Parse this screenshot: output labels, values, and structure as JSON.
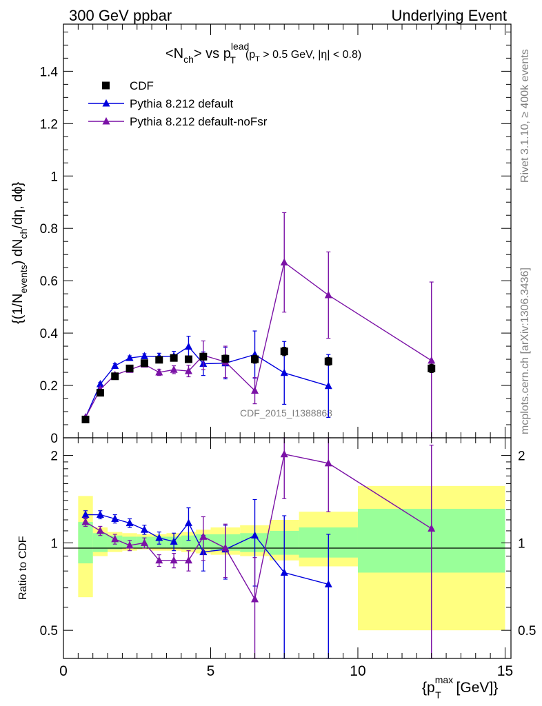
{
  "header": {
    "left": "300 GeV ppbar",
    "right": "Underlying Event"
  },
  "side_text": {
    "top": "Rivet 3.1.10, ≥ 400k events",
    "bottom": "mcplots.cern.ch [arXiv:1306.3436]"
  },
  "watermark": "CDF_2015_I1388868",
  "title": {
    "main": "<N",
    "sub_ch": "ch",
    "vs": "> vs p",
    "sup_lead": "lead",
    "sub_T": "T",
    "cuts_open": "(p",
    "cuts_sub_T": "T",
    "cuts_rest": " > 0.5 GeV, |η| < 0.8)"
  },
  "ylabel_top": "{(1/N_events) dN_ch/dη, dϕ}",
  "ylabel_parts": {
    "a": "{(1/N",
    "a_sub": "events",
    "b": ") dN",
    "b_sub": "ch",
    "c": "/dη, dϕ}"
  },
  "ylabel_bottom": "Ratio to CDF",
  "xlabel_parts": {
    "a": "{p",
    "sup": "max",
    "sub": "T",
    "b": " [GeV]}"
  },
  "colors": {
    "data": "#000000",
    "default": "#0000dd",
    "noFsr": "#7b12a6",
    "band_outer": "#ffff80",
    "band_inner": "#99ff99"
  },
  "chart_data": [
    {
      "type": "scatter",
      "title": "<N_ch> vs p_T^lead (p_T > 0.5 GeV, |η| < 0.8)",
      "xlim": [
        0,
        15.2
      ],
      "ylim": [
        0,
        1.58
      ],
      "yticks": [
        0,
        0.2,
        0.4,
        0.6,
        0.8,
        1,
        1.2,
        1.4
      ],
      "ytick_labels": [
        "0",
        "0.2",
        "0.4",
        "0.6",
        "0.8",
        "1",
        "1.2",
        "1.4"
      ],
      "legend_position": "top-left",
      "legend": [
        "CDF",
        "Pythia 8.212 default",
        "Pythia 8.212 default-noFsr"
      ],
      "series": [
        {
          "name": "CDF",
          "x": [
            0.75,
            1.25,
            1.75,
            2.25,
            2.75,
            3.25,
            3.75,
            4.25,
            4.75,
            5.5,
            6.5,
            7.5,
            9.0,
            12.5
          ],
          "y": [
            0.07,
            0.172,
            0.235,
            0.265,
            0.285,
            0.298,
            0.305,
            0.3,
            0.31,
            0.302,
            0.3,
            0.33,
            0.292,
            0.265
          ],
          "err": [
            0.005,
            0.006,
            0.008,
            0.009,
            0.01,
            0.011,
            0.012,
            0.012,
            0.013,
            0.014,
            0.015,
            0.016,
            0.015,
            0.016
          ]
        },
        {
          "name": "Pythia 8.212 default",
          "x": [
            0.75,
            1.25,
            1.75,
            2.25,
            2.75,
            3.25,
            3.75,
            4.25,
            4.75,
            5.5,
            6.5,
            7.5,
            9.0
          ],
          "y": [
            0.078,
            0.205,
            0.275,
            0.305,
            0.312,
            0.31,
            0.312,
            0.348,
            0.283,
            0.285,
            0.318,
            0.248,
            0.198
          ],
          "err": [
            0.004,
            0.006,
            0.008,
            0.008,
            0.009,
            0.013,
            0.018,
            0.04,
            0.045,
            0.06,
            0.09,
            0.12,
            0.12
          ]
        },
        {
          "name": "Pythia 8.212 default-noFsr",
          "x": [
            0.75,
            1.25,
            1.75,
            2.25,
            2.75,
            3.25,
            3.75,
            4.25,
            4.75,
            5.5,
            6.5,
            7.5,
            9.0,
            12.5
          ],
          "y": [
            0.078,
            0.185,
            0.24,
            0.26,
            0.28,
            0.25,
            0.26,
            0.255,
            0.315,
            0.29,
            0.18,
            0.67,
            0.545,
            0.295
          ],
          "err": [
            0.004,
            0.006,
            0.007,
            0.008,
            0.009,
            0.012,
            0.015,
            0.022,
            0.055,
            0.06,
            0.05,
            0.19,
            0.165,
            0.3
          ]
        }
      ]
    },
    {
      "type": "scatter",
      "ylabel": "Ratio to CDF",
      "xlabel": "{p_T^max [GeV]}",
      "xlim": [
        0,
        15.2
      ],
      "ylim": [
        0.4,
        2.3
      ],
      "log_y": true,
      "xticks": [
        0,
        5,
        10,
        15
      ],
      "xtick_labels": [
        "0",
        "5",
        "10",
        "15"
      ],
      "yticks": [
        0.5,
        1,
        2
      ],
      "ytick_labels": [
        "0.5",
        "1",
        "2"
      ],
      "bands": {
        "edges": [
          0.5,
          1.0,
          1.5,
          2.0,
          2.5,
          3.0,
          3.5,
          4.0,
          4.5,
          5.0,
          6.0,
          7.0,
          8.0,
          10.0,
          15.0
        ],
        "outer_lo": [
          0.65,
          0.9,
          0.93,
          0.94,
          0.95,
          0.94,
          0.94,
          0.93,
          0.92,
          0.91,
          0.9,
          0.87,
          0.83,
          0.5
        ],
        "outer_hi": [
          1.45,
          1.13,
          1.09,
          1.08,
          1.07,
          1.07,
          1.08,
          1.09,
          1.11,
          1.13,
          1.15,
          1.2,
          1.28,
          1.57
        ],
        "inner_lo": [
          0.85,
          0.93,
          0.95,
          0.96,
          0.96,
          0.96,
          0.96,
          0.95,
          0.95,
          0.94,
          0.93,
          0.91,
          0.89,
          0.79
        ],
        "inner_hi": [
          1.18,
          1.08,
          1.06,
          1.05,
          1.05,
          1.05,
          1.05,
          1.06,
          1.07,
          1.07,
          1.08,
          1.1,
          1.13,
          1.31
        ]
      },
      "series": [
        {
          "name": "Pythia 8.212 default",
          "x": [
            0.75,
            1.25,
            1.75,
            2.25,
            2.75,
            3.25,
            3.75,
            4.25,
            4.75,
            5.5,
            6.5,
            7.5,
            9.0
          ],
          "y": [
            1.25,
            1.25,
            1.21,
            1.17,
            1.11,
            1.04,
            1.01,
            1.17,
            0.93,
            0.95,
            1.06,
            0.79,
            0.72
          ],
          "err": [
            0.04,
            0.04,
            0.04,
            0.04,
            0.04,
            0.05,
            0.07,
            0.15,
            0.13,
            0.2,
            0.35,
            0.45,
            0.35
          ]
        },
        {
          "name": "Pythia 8.212 default-noFsr",
          "x": [
            0.75,
            1.25,
            1.75,
            2.25,
            2.75,
            3.25,
            3.75,
            4.25,
            4.75,
            5.5,
            6.5,
            7.5,
            9.0,
            12.5
          ],
          "y": [
            1.18,
            1.1,
            1.03,
            0.98,
            1.0,
            0.87,
            0.87,
            0.87,
            1.05,
            0.96,
            0.64,
            2.02,
            1.88,
            1.12
          ],
          "err": [
            0.04,
            0.04,
            0.04,
            0.04,
            0.04,
            0.04,
            0.05,
            0.07,
            0.18,
            0.2,
            0.25,
            0.6,
            0.6,
            1.05
          ]
        }
      ]
    }
  ]
}
